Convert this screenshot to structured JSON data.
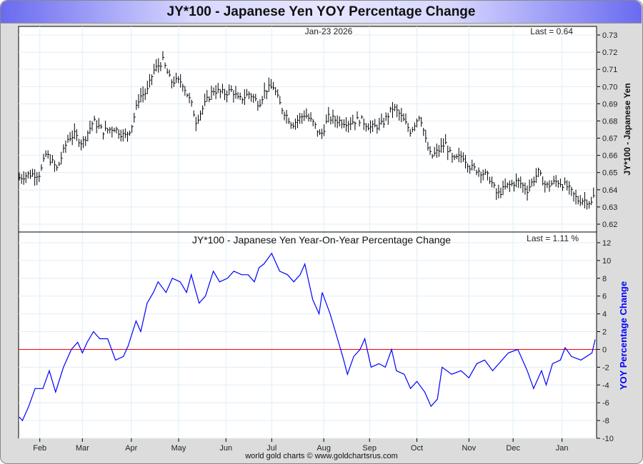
{
  "title": "JY*100  -  Japanese Yen YOY Percentage Change",
  "footer": "world gold charts © www.goldchartsrus.com",
  "colors": {
    "price": "#000000",
    "yoy": "#0000ff",
    "zero_line": "#ff0000",
    "grid": "#dfeef8"
  },
  "chart_data": [
    {
      "type": "bar",
      "subtype": "ohlc",
      "date_label": "Jan-23  2026",
      "last_label": "Last = 0.64",
      "ylabel": "JY*100  -  Japanese Yen",
      "ylim": [
        0.615,
        0.735
      ],
      "yticks": [
        0.73,
        0.72,
        0.71,
        0.7,
        0.69,
        0.68,
        0.67,
        0.66,
        0.65,
        0.64,
        0.63,
        0.62
      ],
      "ytick_labels": [
        "0.73",
        "0.72",
        "0.71",
        "0.70",
        "0.69",
        "0.68",
        "0.67",
        "0.66",
        "0.65",
        "0.64",
        "0.63",
        "0.62"
      ],
      "x_unit": "days since Jan-23 2025",
      "xlim": [
        0,
        365
      ],
      "x": [
        0,
        6,
        13,
        17,
        24,
        31,
        35,
        40,
        47,
        53,
        60,
        67,
        71,
        76,
        81,
        85,
        91,
        96,
        103,
        109,
        112,
        119,
        123,
        130,
        135,
        139,
        146,
        152,
        156,
        161,
        166,
        173,
        181,
        187,
        191,
        196,
        203,
        209,
        216,
        223,
        230,
        237,
        241,
        248,
        254,
        258,
        261,
        266,
        270,
        275,
        281,
        286,
        292,
        298,
        303,
        309,
        316,
        322,
        329,
        334,
        341,
        347,
        354,
        359,
        363,
        365
      ],
      "close": [
        0.647,
        0.649,
        0.649,
        0.661,
        0.652,
        0.67,
        0.672,
        0.667,
        0.68,
        0.674,
        0.676,
        0.671,
        0.676,
        0.694,
        0.697,
        0.709,
        0.715,
        0.703,
        0.703,
        0.69,
        0.68,
        0.692,
        0.698,
        0.696,
        0.698,
        0.692,
        0.696,
        0.69,
        0.698,
        0.7,
        0.688,
        0.678,
        0.684,
        0.678,
        0.671,
        0.682,
        0.68,
        0.679,
        0.681,
        0.676,
        0.678,
        0.688,
        0.684,
        0.674,
        0.684,
        0.667,
        0.659,
        0.663,
        0.667,
        0.657,
        0.66,
        0.653,
        0.651,
        0.647,
        0.637,
        0.642,
        0.645,
        0.64,
        0.65,
        0.642,
        0.645,
        0.642,
        0.634,
        0.634,
        0.632,
        0.64
      ]
    },
    {
      "type": "line",
      "title": "JY*100  -  Japanese Yen Year-On-Year Percentage Change",
      "last_label": "Last = 1.11 %",
      "ylabel": "YOY Percentage Change",
      "ylim": [
        -10,
        13
      ],
      "yticks": [
        12,
        10,
        8,
        6,
        4,
        2,
        0,
        -2,
        -4,
        -6,
        -8,
        -10
      ],
      "ytick_labels": [
        "12",
        "10",
        "8",
        "6",
        "4",
        "2",
        "0",
        "-2",
        "-4",
        "-6",
        "-8",
        "-10"
      ],
      "reference_line": 0,
      "x_unit": "days since Jan-23 2025",
      "xlim": [
        0,
        365
      ],
      "x": [
        0,
        2,
        6,
        10,
        15,
        19,
        23,
        28,
        33,
        37,
        40,
        43,
        47,
        51,
        56,
        61,
        66,
        69,
        74,
        77,
        81,
        85,
        88,
        93,
        97,
        102,
        106,
        109,
        114,
        118,
        123,
        127,
        132,
        136,
        141,
        145,
        149,
        152,
        155,
        160,
        165,
        170,
        174,
        178,
        181,
        186,
        190,
        192,
        197,
        201,
        205,
        208,
        212,
        216,
        219,
        223,
        228,
        232,
        236,
        239,
        244,
        248,
        252,
        257,
        261,
        265,
        268,
        274,
        280,
        285,
        290,
        295,
        300,
        304,
        310,
        316,
        322,
        326,
        331,
        334,
        338,
        343,
        346,
        350,
        356,
        363,
        365
      ],
      "values": [
        -7.6,
        -8.0,
        -6.4,
        -4.4,
        -4.4,
        -2.4,
        -4.8,
        -2.0,
        0.0,
        0.8,
        -0.4,
        0.8,
        2.0,
        1.2,
        1.2,
        -1.2,
        -0.8,
        0.4,
        3.2,
        2.0,
        5.2,
        6.4,
        7.6,
        6.4,
        8.0,
        7.6,
        6.4,
        8.4,
        5.2,
        6.0,
        8.8,
        7.6,
        8.0,
        8.8,
        8.4,
        8.4,
        7.6,
        9.2,
        9.6,
        10.8,
        8.8,
        8.4,
        7.6,
        8.4,
        9.6,
        5.6,
        4.0,
        6.4,
        4.0,
        1.6,
        -0.8,
        -2.8,
        -0.8,
        0.0,
        1.2,
        -2.0,
        -1.6,
        -2.0,
        0.0,
        -2.4,
        -2.8,
        -4.4,
        -3.6,
        -4.8,
        -6.4,
        -5.6,
        -2.0,
        -2.8,
        -2.4,
        -3.2,
        -1.6,
        -1.2,
        -2.4,
        -1.6,
        -0.4,
        0.0,
        -2.4,
        -4.4,
        -2.4,
        -4.0,
        -1.6,
        -1.2,
        0.2,
        -0.8,
        -1.2,
        -0.4,
        1.11
      ]
    }
  ],
  "x_axis": {
    "ticks": [
      13,
      40,
      71,
      101,
      131,
      160,
      193,
      222,
      252,
      285,
      313,
      344
    ],
    "labels": [
      "Feb",
      "Mar",
      "Apr",
      "May",
      "Jun",
      "Jul",
      "Aug",
      "Sep",
      "Oct",
      "Nov",
      "Dec",
      "Jan"
    ]
  }
}
